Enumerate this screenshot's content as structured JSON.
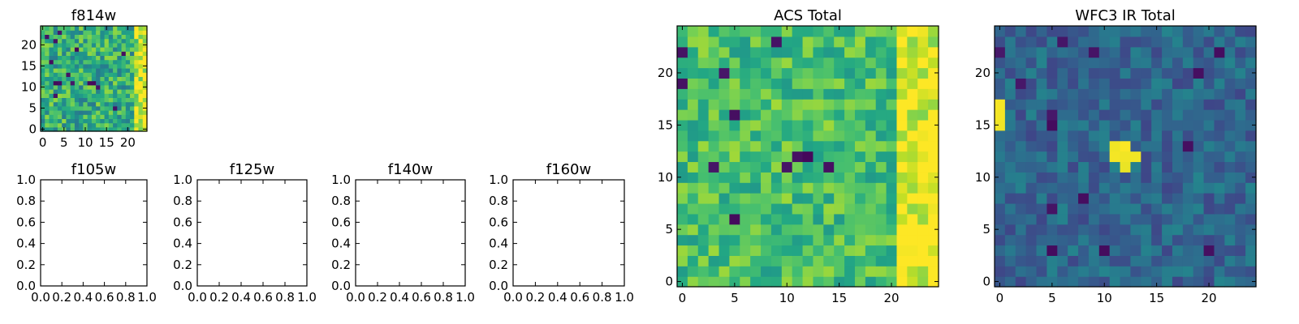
{
  "chart_data": [
    {
      "type": "heatmap",
      "id": "f814w",
      "title": "f814w",
      "xlabel": "",
      "ylabel": "",
      "xlim": [
        -0.5,
        24.5
      ],
      "ylim": [
        -0.5,
        24.5
      ],
      "xticks": [
        0,
        5,
        10,
        15,
        20
      ],
      "yticks": [
        0,
        5,
        10,
        15,
        20
      ],
      "colormap": "viridis",
      "value_range": [
        0,
        1
      ],
      "grid_shape": [
        25,
        25
      ],
      "note_values": "pixel values are noise-like; low-value pixels scattered, high values concentrated toward the right edge (x≈22-24)",
      "low_pixels": [
        [
          1,
          22
        ],
        [
          3,
          21
        ],
        [
          4,
          23
        ],
        [
          2,
          16
        ],
        [
          8,
          19
        ],
        [
          6,
          13
        ],
        [
          3,
          11
        ],
        [
          4,
          11
        ],
        [
          11,
          11
        ],
        [
          12,
          11
        ],
        [
          13,
          10
        ],
        [
          3,
          8
        ],
        [
          7,
          11
        ],
        [
          19,
          18
        ],
        [
          17,
          5
        ]
      ],
      "high_columns": [
        22,
        23,
        24
      ]
    },
    {
      "type": "heatmap",
      "id": "acs_total",
      "title": "ACS Total",
      "xlabel": "",
      "ylabel": "",
      "xlim": [
        -0.5,
        24.5
      ],
      "ylim": [
        -0.5,
        24.5
      ],
      "xticks": [
        0,
        5,
        10,
        15,
        20
      ],
      "yticks": [
        0,
        5,
        10,
        15,
        20
      ],
      "colormap": "viridis",
      "value_range": [
        0,
        1
      ],
      "grid_shape": [
        25,
        25
      ],
      "low_pixels": [
        [
          0,
          22
        ],
        [
          0,
          19
        ],
        [
          4,
          20
        ],
        [
          5,
          16
        ],
        [
          3,
          11
        ],
        [
          11,
          12
        ],
        [
          12,
          12
        ],
        [
          14,
          11
        ],
        [
          10,
          11
        ],
        [
          5,
          6
        ],
        [
          9,
          23
        ]
      ],
      "high_columns": [
        21,
        22,
        23,
        24
      ]
    },
    {
      "type": "heatmap",
      "id": "wfc3_ir_total",
      "title": "WFC3 IR Total",
      "xlabel": "",
      "ylabel": "",
      "xlim": [
        -0.5,
        24.5
      ],
      "ylim": [
        -0.5,
        24.5
      ],
      "xticks": [
        0,
        5,
        10,
        15,
        20
      ],
      "yticks": [
        0,
        5,
        10,
        15,
        20
      ],
      "colormap": "viridis",
      "value_range": [
        0,
        1
      ],
      "grid_shape": [
        25,
        25
      ],
      "low_pixels": [
        [
          6,
          23
        ],
        [
          0,
          22
        ],
        [
          9,
          22
        ],
        [
          21,
          22
        ],
        [
          2,
          19
        ],
        [
          19,
          20
        ],
        [
          5,
          16
        ],
        [
          5,
          15
        ],
        [
          18,
          13
        ],
        [
          8,
          8
        ],
        [
          5,
          7
        ],
        [
          5,
          3
        ],
        [
          10,
          3
        ],
        [
          20,
          3
        ]
      ],
      "bright_pixels": [
        [
          0,
          15
        ],
        [
          0,
          16
        ],
        [
          0,
          17
        ],
        [
          11,
          12
        ],
        [
          12,
          12
        ],
        [
          11,
          13
        ],
        [
          12,
          13
        ],
        [
          13,
          12
        ],
        [
          12,
          11
        ]
      ]
    },
    {
      "type": "empty",
      "id": "f105w",
      "title": "f105w",
      "xlim": [
        0.0,
        1.0
      ],
      "ylim": [
        0.0,
        1.0
      ],
      "xticks": [
        "0.0",
        "0.2",
        "0.4",
        "0.6",
        "0.8",
        "1.0"
      ],
      "yticks": [
        "0.0",
        "0.2",
        "0.4",
        "0.6",
        "0.8",
        "1.0"
      ]
    },
    {
      "type": "empty",
      "id": "f125w",
      "title": "f125w",
      "xlim": [
        0.0,
        1.0
      ],
      "ylim": [
        0.0,
        1.0
      ],
      "xticks": [
        "0.0",
        "0.2",
        "0.4",
        "0.6",
        "0.8",
        "1.0"
      ],
      "yticks": [
        "0.0",
        "0.2",
        "0.4",
        "0.6",
        "0.8",
        "1.0"
      ]
    },
    {
      "type": "empty",
      "id": "f140w",
      "title": "f140w",
      "xlim": [
        0.0,
        1.0
      ],
      "ylim": [
        0.0,
        1.0
      ],
      "xticks": [
        "0.0",
        "0.2",
        "0.4",
        "0.6",
        "0.8",
        "1.0"
      ],
      "yticks": [
        "0.0",
        "0.2",
        "0.4",
        "0.6",
        "0.8",
        "1.0"
      ]
    },
    {
      "type": "empty",
      "id": "f160w",
      "title": "f160w",
      "xlim": [
        0.0,
        1.0
      ],
      "ylim": [
        0.0,
        1.0
      ],
      "xticks": [
        "0.0",
        "0.2",
        "0.4",
        "0.6",
        "0.8",
        "1.0"
      ],
      "yticks": [
        "0.0",
        "0.2",
        "0.4",
        "0.6",
        "0.8",
        "1.0"
      ]
    }
  ]
}
